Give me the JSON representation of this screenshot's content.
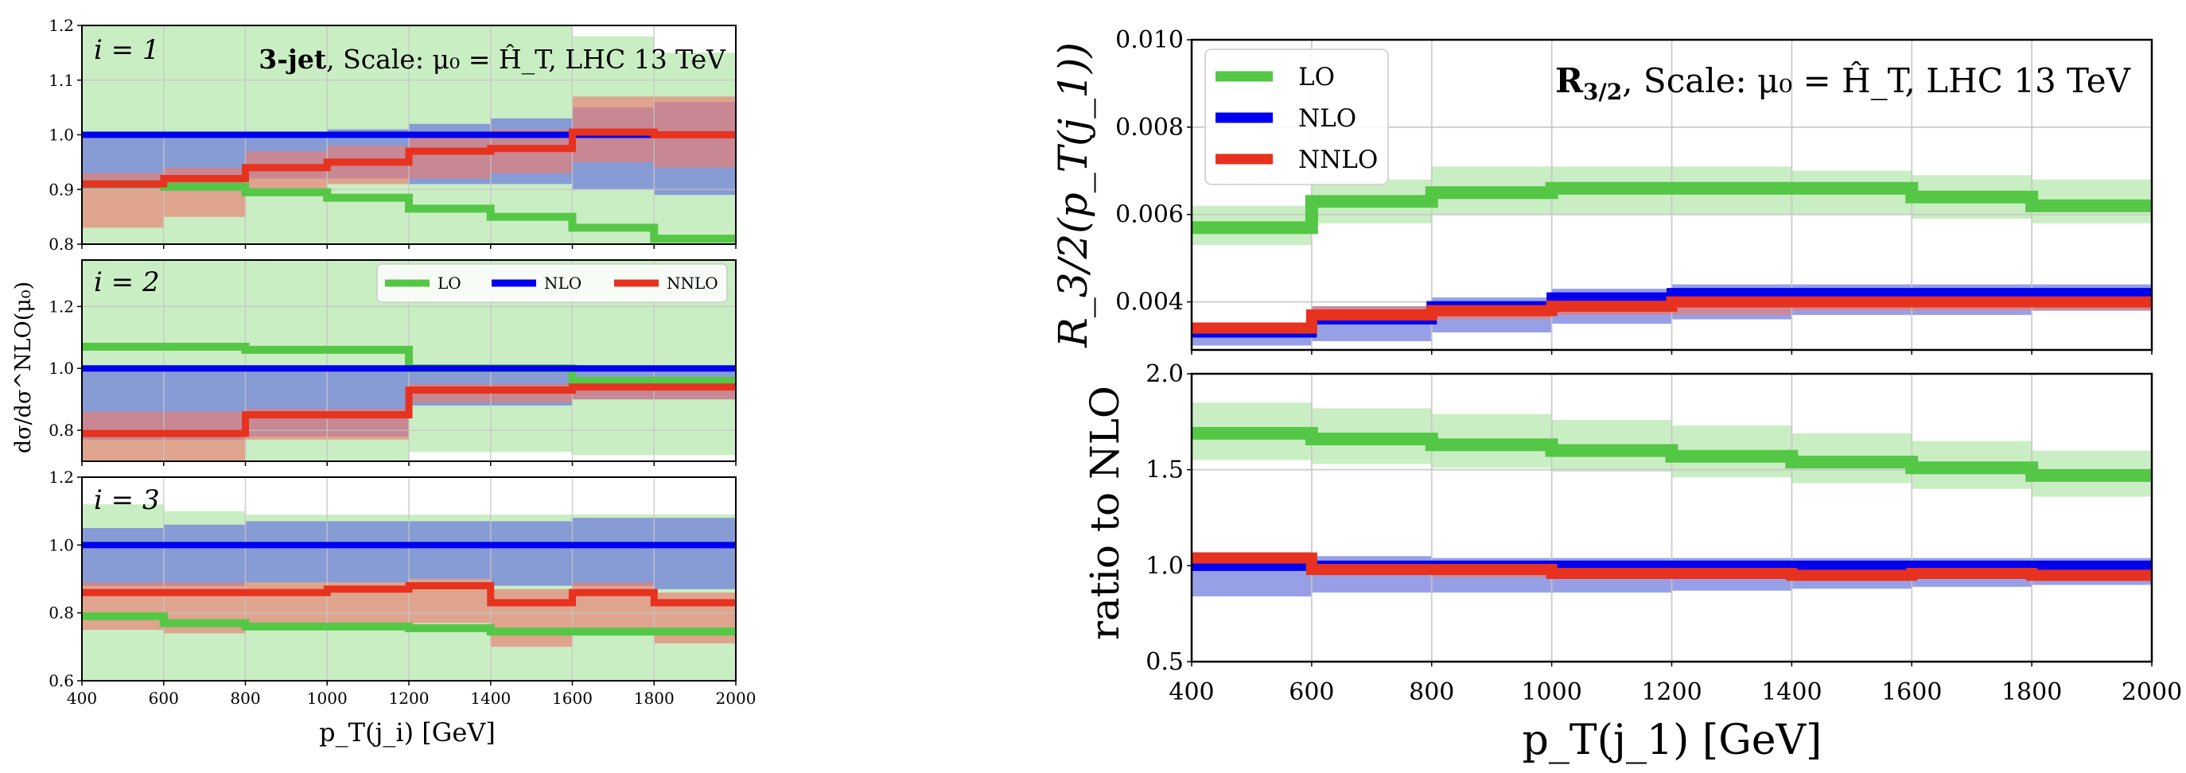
{
  "colors": {
    "LO": "#55c746",
    "LO_band": "#a6e39b",
    "NLO": "#0000ee",
    "NLO_band": "#6b78dd",
    "NNLO": "#e7321f",
    "NNLO_band": "#e97d70",
    "grid": "#c4c4c4"
  },
  "legend": {
    "LO": "LO",
    "NLO": "NLO",
    "NNLO": "NNLO"
  },
  "left_figure": {
    "annotation_bold": "3-jet",
    "annotation_rest": ", Scale: μ₀ = Ĥ_T, LHC 13 TeV",
    "ylabel": "dσ/dσ^NLO(μ₀)",
    "xlabel": "p_T(j_i) [GeV]"
  },
  "right_figure": {
    "annotation_bold": "R",
    "annotation_sub": "3/2",
    "annotation_rest": ", Scale: μ₀ = Ĥ_T, LHC 13 TeV",
    "ylabel_top": "R_3/2(p_T(j_1))",
    "ylabel_bottom": "ratio to NLO",
    "xlabel": "p_T(j_1) [GeV]"
  },
  "chart_data": [
    {
      "type": "line",
      "id": "left_i1",
      "panel_label": "i = 1",
      "x_edges": [
        400,
        600,
        800,
        1000,
        1200,
        1400,
        1600,
        1800,
        2000
      ],
      "xlim": [
        400,
        2000
      ],
      "ylim": [
        0.8,
        1.2
      ],
      "yticks": [
        0.8,
        0.9,
        1.0,
        1.1,
        1.2
      ],
      "xticks": [
        400,
        600,
        800,
        1000,
        1200,
        1400,
        1600,
        1800,
        2000
      ],
      "series": [
        {
          "name": "LO",
          "values": [
            0.91,
            0.905,
            0.895,
            0.885,
            0.865,
            0.85,
            0.83,
            0.81
          ],
          "band_lo": [
            0.8,
            0.8,
            0.8,
            0.8,
            0.8,
            0.8,
            0.8,
            0.8
          ],
          "band_hi": [
            1.2,
            1.2,
            1.2,
            1.2,
            1.2,
            1.2,
            1.18,
            1.15
          ]
        },
        {
          "name": "NLO",
          "values": [
            1.0,
            1.0,
            1.0,
            1.0,
            1.0,
            1.0,
            1.0,
            1.0
          ],
          "band_lo": [
            0.9,
            0.9,
            0.92,
            0.92,
            0.91,
            0.91,
            0.9,
            0.89
          ],
          "band_hi": [
            1.0,
            1.0,
            1.0,
            1.01,
            1.02,
            1.03,
            1.05,
            1.06
          ]
        },
        {
          "name": "NNLO",
          "values": [
            0.91,
            0.92,
            0.94,
            0.95,
            0.97,
            0.975,
            1.005,
            1.0
          ],
          "band_lo": [
            0.83,
            0.85,
            0.89,
            0.91,
            0.92,
            0.93,
            0.95,
            0.94
          ],
          "band_hi": [
            0.93,
            0.94,
            0.97,
            0.98,
            1.0,
            1.01,
            1.07,
            1.07
          ]
        }
      ]
    },
    {
      "type": "line",
      "id": "left_i2",
      "panel_label": "i = 2",
      "x_edges": [
        400,
        600,
        800,
        1000,
        1200,
        1400,
        1600,
        1800,
        2000
      ],
      "xlim": [
        400,
        2000
      ],
      "ylim": [
        0.7,
        1.35
      ],
      "yticks": [
        0.8,
        1.0,
        1.2
      ],
      "xticks": [
        400,
        600,
        800,
        1000,
        1200,
        1400,
        1600,
        1800,
        2000
      ],
      "series": [
        {
          "name": "LO",
          "values": [
            1.07,
            1.07,
            1.06,
            1.06,
            1.0,
            1.0,
            0.96,
            0.96
          ],
          "band_lo": [
            0.7,
            0.7,
            0.7,
            0.7,
            0.73,
            0.73,
            0.72,
            0.72
          ],
          "band_hi": [
            1.35,
            1.35,
            1.35,
            1.35,
            1.35,
            1.35,
            1.35,
            1.35
          ]
        },
        {
          "name": "NLO",
          "values": [
            1.0,
            1.0,
            1.0,
            1.0,
            1.0,
            1.0,
            1.0,
            1.0
          ],
          "band_lo": [
            0.77,
            0.77,
            0.78,
            0.78,
            0.88,
            0.88,
            0.9,
            0.9
          ],
          "band_hi": [
            1.0,
            1.0,
            1.0,
            1.0,
            1.0,
            1.0,
            1.0,
            1.0
          ]
        },
        {
          "name": "NNLO",
          "values": [
            0.79,
            0.79,
            0.85,
            0.85,
            0.93,
            0.93,
            0.94,
            0.94
          ],
          "band_lo": [
            0.7,
            0.7,
            0.77,
            0.77,
            0.89,
            0.89,
            0.9,
            0.9
          ],
          "band_hi": [
            0.86,
            0.86,
            0.87,
            0.87,
            0.95,
            0.95,
            0.96,
            0.96
          ]
        }
      ]
    },
    {
      "type": "line",
      "id": "left_i3",
      "panel_label": "i = 3",
      "x_edges": [
        400,
        600,
        800,
        1000,
        1200,
        1400,
        1600,
        1800,
        2000
      ],
      "xlim": [
        400,
        2000
      ],
      "ylim": [
        0.6,
        1.2
      ],
      "yticks": [
        0.6,
        0.8,
        1.0,
        1.2
      ],
      "xticks": [
        400,
        600,
        800,
        1000,
        1200,
        1400,
        1600,
        1800,
        2000
      ],
      "xticklabels": [
        "400",
        "600",
        "800",
        "1000",
        "1200",
        "1400",
        "1600",
        "1800",
        "2000"
      ],
      "series": [
        {
          "name": "LO",
          "values": [
            0.79,
            0.77,
            0.76,
            0.76,
            0.755,
            0.745,
            0.745,
            0.745
          ],
          "band_lo": [
            0.6,
            0.6,
            0.6,
            0.6,
            0.6,
            0.6,
            0.6,
            0.6
          ],
          "band_hi": [
            1.12,
            1.1,
            1.09,
            1.09,
            1.09,
            1.09,
            1.09,
            1.09
          ]
        },
        {
          "name": "NLO",
          "values": [
            1.0,
            1.0,
            1.0,
            1.0,
            1.0,
            1.0,
            1.0,
            1.0
          ],
          "band_lo": [
            0.88,
            0.88,
            0.89,
            0.89,
            0.9,
            0.88,
            0.88,
            0.87
          ],
          "band_hi": [
            1.05,
            1.06,
            1.07,
            1.07,
            1.07,
            1.07,
            1.08,
            1.08
          ]
        },
        {
          "name": "NNLO",
          "values": [
            0.86,
            0.86,
            0.86,
            0.87,
            0.88,
            0.83,
            0.86,
            0.83
          ],
          "band_lo": [
            0.75,
            0.74,
            0.75,
            0.76,
            0.77,
            0.7,
            0.74,
            0.71
          ],
          "band_hi": [
            0.89,
            0.89,
            0.89,
            0.89,
            0.9,
            0.87,
            0.89,
            0.86
          ]
        }
      ]
    },
    {
      "type": "line",
      "id": "right_top",
      "title": "R3/2, Scale: μ0 = ĤT, LHC 13 TeV",
      "x_edges": [
        400,
        600,
        800,
        1000,
        1200,
        1400,
        1600,
        1800,
        2000
      ],
      "xlim": [
        400,
        2000
      ],
      "ylim": [
        0.0029,
        0.01
      ],
      "yticks": [
        0.004,
        0.006,
        0.008,
        0.01
      ],
      "yticklabels": [
        "0.004",
        "0.006",
        "0.008",
        "0.010"
      ],
      "xticks": [
        400,
        600,
        800,
        1000,
        1200,
        1400,
        1600,
        1800,
        2000
      ],
      "series": [
        {
          "name": "LO",
          "values": [
            0.0057,
            0.0063,
            0.0065,
            0.0066,
            0.0066,
            0.0066,
            0.0064,
            0.0062
          ],
          "band_lo": [
            0.0053,
            0.0058,
            0.006,
            0.006,
            0.006,
            0.006,
            0.0059,
            0.0058
          ],
          "band_hi": [
            0.0062,
            0.0068,
            0.0071,
            0.0071,
            0.0071,
            0.007,
            0.0069,
            0.0068
          ]
        },
        {
          "name": "NLO",
          "values": [
            0.0033,
            0.0036,
            0.0039,
            0.0041,
            0.0042,
            0.0042,
            0.0042,
            0.0042
          ],
          "band_lo": [
            0.003,
            0.0031,
            0.0033,
            0.0035,
            0.0036,
            0.0037,
            0.0037,
            0.0038
          ],
          "band_hi": [
            0.0035,
            0.0039,
            0.0041,
            0.0043,
            0.0044,
            0.0044,
            0.0044,
            0.0044
          ]
        },
        {
          "name": "NNLO",
          "values": [
            0.0034,
            0.0037,
            0.0038,
            0.0039,
            0.004,
            0.004,
            0.004,
            0.004
          ],
          "band_lo": [
            0.0032,
            0.0035,
            0.0036,
            0.0037,
            0.0037,
            0.0038,
            0.0038,
            0.0038
          ],
          "band_hi": [
            0.0035,
            0.0039,
            0.004,
            0.0041,
            0.0042,
            0.0042,
            0.0042,
            0.0042
          ]
        }
      ]
    },
    {
      "type": "line",
      "id": "right_bottom",
      "x_edges": [
        400,
        600,
        800,
        1000,
        1200,
        1400,
        1600,
        1800,
        2000
      ],
      "xlim": [
        400,
        2000
      ],
      "ylim": [
        0.5,
        2.0
      ],
      "yticks": [
        0.5,
        1.0,
        1.5,
        2.0
      ],
      "yticklabels": [
        "0.5",
        "1.0",
        "1.5",
        "2.0"
      ],
      "xticks": [
        400,
        600,
        800,
        1000,
        1200,
        1400,
        1600,
        1800,
        2000
      ],
      "xticklabels": [
        "400",
        "600",
        "800",
        "1000",
        "1200",
        "1400",
        "1600",
        "1800",
        "2000"
      ],
      "series": [
        {
          "name": "LO",
          "values": [
            1.69,
            1.66,
            1.63,
            1.6,
            1.57,
            1.54,
            1.51,
            1.47
          ],
          "band_lo": [
            1.55,
            1.53,
            1.51,
            1.49,
            1.46,
            1.43,
            1.4,
            1.36
          ],
          "band_hi": [
            1.85,
            1.82,
            1.79,
            1.76,
            1.73,
            1.69,
            1.65,
            1.6
          ]
        },
        {
          "name": "NLO",
          "values": [
            1.0,
            1.0,
            1.0,
            1.0,
            1.0,
            1.0,
            1.0,
            1.0
          ],
          "band_lo": [
            0.84,
            0.86,
            0.86,
            0.86,
            0.87,
            0.88,
            0.89,
            0.9
          ],
          "band_hi": [
            1.07,
            1.05,
            1.04,
            1.04,
            1.04,
            1.04,
            1.04,
            1.04
          ]
        },
        {
          "name": "NNLO",
          "values": [
            1.04,
            0.98,
            0.98,
            0.96,
            0.96,
            0.95,
            0.96,
            0.95
          ],
          "band_lo": [
            0.98,
            0.95,
            0.94,
            0.93,
            0.93,
            0.92,
            0.93,
            0.92
          ],
          "band_hi": [
            1.07,
            1.02,
            1.01,
            0.99,
            0.99,
            0.98,
            0.99,
            0.98
          ]
        }
      ]
    }
  ]
}
